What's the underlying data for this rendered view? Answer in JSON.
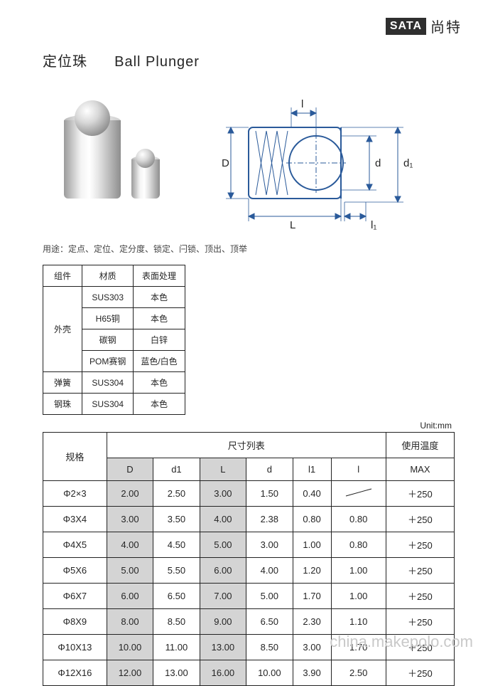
{
  "logo": {
    "box": "SATA",
    "text": "尚特"
  },
  "title_cn": "定位珠",
  "title_en": "Ball Plunger",
  "usage_text": "用途：定点、定位、定分度、锁定、闩锁、顶出、顶举",
  "mat": {
    "h_component": "组件",
    "h_material": "材质",
    "h_finish": "表面处理",
    "shell": "外壳",
    "rows": [
      {
        "m": "SUS303",
        "f": "本色"
      },
      {
        "m": "H65铜",
        "f": "本色"
      },
      {
        "m": "碳钢",
        "f": "白锌"
      },
      {
        "m": "POM赛钢",
        "f": "蓝色/白色"
      }
    ],
    "spring": "弹簧",
    "spring_m": "SUS304",
    "spring_f": "本色",
    "ball": "钢珠",
    "ball_m": "SUS304",
    "ball_f": "本色"
  },
  "unit": "Unit:mm",
  "dim": {
    "header_group": "尺寸列表",
    "header_temp": "使用温度",
    "spec": "规格",
    "cols": [
      "D",
      "d1",
      "L",
      "d",
      "l1",
      "l"
    ],
    "max": "MAX",
    "rows": [
      {
        "s": "Φ2×3",
        "D": "2.00",
        "d1": "2.50",
        "L": "3.00",
        "d": "1.50",
        "l1": "0.40",
        "l": "/",
        "t": "＋250"
      },
      {
        "s": "Φ3X4",
        "D": "3.00",
        "d1": "3.50",
        "L": "4.00",
        "d": "2.38",
        "l1": "0.80",
        "l": "0.80",
        "t": "＋250"
      },
      {
        "s": "Φ4X5",
        "D": "4.00",
        "d1": "4.50",
        "L": "5.00",
        "d": "3.00",
        "l1": "1.00",
        "l": "0.80",
        "t": "＋250"
      },
      {
        "s": "Φ5X6",
        "D": "5.00",
        "d1": "5.50",
        "L": "6.00",
        "d": "4.00",
        "l1": "1.20",
        "l": "1.00",
        "t": "＋250"
      },
      {
        "s": "Φ6X7",
        "D": "6.00",
        "d1": "6.50",
        "L": "7.00",
        "d": "5.00",
        "l1": "1.70",
        "l": "1.00",
        "t": "＋250"
      },
      {
        "s": "Φ8X9",
        "D": "8.00",
        "d1": "8.50",
        "L": "9.00",
        "d": "6.50",
        "l1": "2.30",
        "l": "1.10",
        "t": "＋250"
      },
      {
        "s": "Φ10X13",
        "D": "10.00",
        "d1": "11.00",
        "L": "13.00",
        "d": "8.50",
        "l1": "3.00",
        "l": "1.70",
        "t": "＋250"
      },
      {
        "s": "Φ12X16",
        "D": "12.00",
        "d1": "13.00",
        "L": "16.00",
        "d": "10.00",
        "l1": "3.90",
        "l": "2.50",
        "t": "＋250"
      }
    ]
  },
  "diagram_labels": {
    "D": "D",
    "L": "L",
    "d": "d",
    "d1": "d₁",
    "l": "l",
    "l1": "l₁"
  },
  "watermark": "china.makepolo.com"
}
